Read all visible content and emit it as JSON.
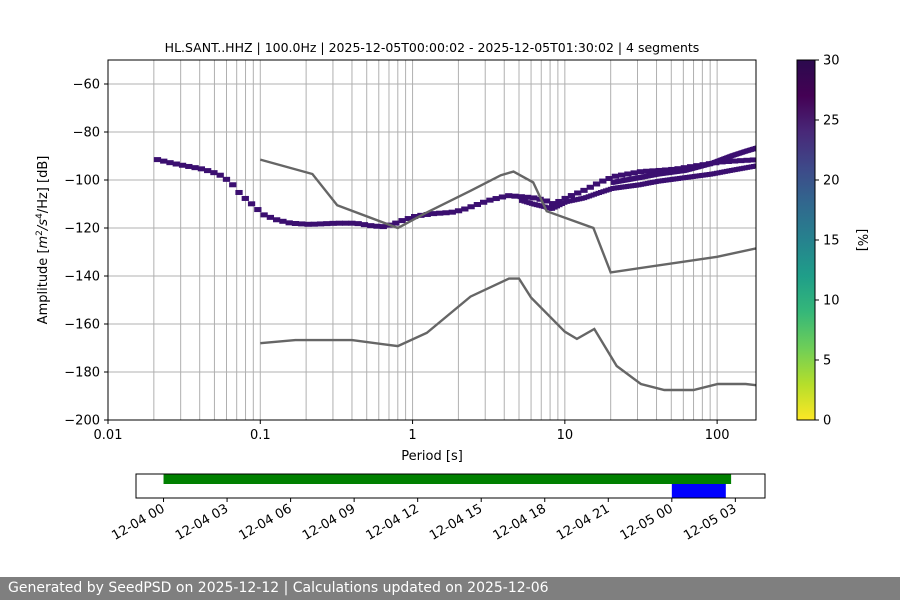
{
  "chart_data": [
    {
      "type": "heatmap",
      "title": "HL.SANT..HHZ | 100.0Hz | 2025-12-05T00:00:02 - 2025-12-05T01:30:02 | 4 segments",
      "xlabel": "Period [s]",
      "ylabel_prefix": "Amplitude [",
      "ylabel_m": "m",
      "ylabel_sup2": "2",
      "ylabel_slash_s": "/s",
      "ylabel_sup4": "4",
      "ylabel_suffix": "/Hz] [dB]",
      "xscale": "log",
      "xlim": [
        0.01,
        180
      ],
      "ylim": [
        -200,
        -50
      ],
      "xticks": [
        {
          "value": 0.01,
          "label": "0.01"
        },
        {
          "value": 0.1,
          "label": "0.1"
        },
        {
          "value": 1,
          "label": "1"
        },
        {
          "value": 10,
          "label": "10"
        },
        {
          "value": 100,
          "label": "100"
        }
      ],
      "yticks": [
        {
          "value": -60,
          "label": "−60"
        },
        {
          "value": -80,
          "label": "−80"
        },
        {
          "value": -100,
          "label": "−100"
        },
        {
          "value": -120,
          "label": "−120"
        },
        {
          "value": -140,
          "label": "−140"
        },
        {
          "value": -160,
          "label": "−160"
        },
        {
          "value": -180,
          "label": "−180"
        },
        {
          "value": -200,
          "label": "−200"
        }
      ],
      "grid": true,
      "vertical_grid_periods": [
        0.02,
        0.03,
        0.04,
        0.05,
        0.06,
        0.07,
        0.08,
        0.09,
        0.1,
        0.2,
        0.3,
        0.4,
        0.5,
        0.6,
        0.7,
        0.8,
        0.9,
        1,
        2,
        3,
        4,
        5,
        6,
        7,
        8,
        9,
        10,
        20,
        30,
        40,
        50,
        60,
        70,
        80,
        90,
        100
      ],
      "psd_color": "#3b0f70",
      "psd_trace": [
        [
          0.02,
          -91.5
        ],
        [
          0.025,
          -93
        ],
        [
          0.03,
          -94
        ],
        [
          0.04,
          -95.5
        ],
        [
          0.05,
          -97.5
        ],
        [
          0.055,
          -99
        ],
        [
          0.06,
          -101
        ],
        [
          0.065,
          -103
        ],
        [
          0.07,
          -106
        ],
        [
          0.08,
          -109
        ],
        [
          0.09,
          -112
        ],
        [
          0.1,
          -114.5
        ],
        [
          0.12,
          -116.5
        ],
        [
          0.15,
          -118
        ],
        [
          0.2,
          -118.5
        ],
        [
          0.3,
          -118
        ],
        [
          0.4,
          -118
        ],
        [
          0.5,
          -119
        ],
        [
          0.6,
          -119.5
        ],
        [
          0.7,
          -118.5
        ],
        [
          0.8,
          -117
        ],
        [
          1,
          -115
        ],
        [
          1.3,
          -114
        ],
        [
          1.7,
          -113.5
        ],
        [
          2,
          -112.5
        ],
        [
          3,
          -108.5
        ],
        [
          4,
          -106.5
        ],
        [
          5,
          -107
        ],
        [
          6,
          -107.5
        ],
        [
          7,
          -108.5
        ],
        [
          8,
          -110
        ],
        [
          10,
          -107
        ],
        [
          13,
          -104
        ],
        [
          16,
          -101
        ],
        [
          20,
          -98.5
        ],
        [
          30,
          -96.5
        ],
        [
          40,
          -96
        ],
        [
          50,
          -95.5
        ],
        [
          70,
          -94
        ],
        [
          100,
          -92.5
        ],
        [
          130,
          -92
        ],
        [
          180,
          -91.5
        ]
      ],
      "psd_trace_lower": [
        [
          5,
          -108.5
        ],
        [
          6,
          -110
        ],
        [
          7,
          -111
        ],
        [
          8,
          -112
        ],
        [
          10,
          -109
        ],
        [
          13,
          -107.5
        ],
        [
          16,
          -105.5
        ],
        [
          20,
          -103.5
        ],
        [
          30,
          -102
        ],
        [
          40,
          -100.5
        ],
        [
          60,
          -99
        ],
        [
          90,
          -97.5
        ],
        [
          120,
          -96
        ],
        [
          180,
          -94
        ]
      ],
      "psd_trace_upper": [
        [
          20,
          -101
        ],
        [
          30,
          -99
        ],
        [
          40,
          -97.5
        ],
        [
          60,
          -96
        ],
        [
          90,
          -93
        ],
        [
          120,
          -90
        ],
        [
          150,
          -88
        ],
        [
          180,
          -86.5
        ]
      ],
      "nhnm": {
        "color": "#666666",
        "points": [
          [
            0.1,
            -91.5
          ],
          [
            0.22,
            -97.5
          ],
          [
            0.32,
            -110.5
          ],
          [
            0.8,
            -120
          ],
          [
            1.2,
            -114
          ],
          [
            2.4,
            -104.5
          ],
          [
            3.8,
            -98
          ],
          [
            4.6,
            -96.5
          ],
          [
            6.2,
            -101
          ],
          [
            7.6,
            -113
          ],
          [
            15.4,
            -120
          ],
          [
            20,
            -138.5
          ],
          [
            100,
            -132
          ],
          [
            180,
            -128.5
          ]
        ]
      },
      "nlnm": {
        "color": "#666666",
        "points": [
          [
            0.1,
            -168
          ],
          [
            0.17,
            -166.7
          ],
          [
            0.4,
            -166.7
          ],
          [
            0.8,
            -169.2
          ],
          [
            1.24,
            -163.7
          ],
          [
            2.4,
            -148.6
          ],
          [
            4.3,
            -141.1
          ],
          [
            5,
            -141.1
          ],
          [
            6,
            -149
          ],
          [
            10,
            -163.2
          ],
          [
            12,
            -166.2
          ],
          [
            15.6,
            -162.1
          ],
          [
            21.9,
            -177.5
          ],
          [
            31.6,
            -185
          ],
          [
            45,
            -187.5
          ],
          [
            70,
            -187.5
          ],
          [
            101,
            -185
          ],
          [
            154,
            -185
          ],
          [
            180,
            -185.5
          ]
        ]
      }
    },
    {
      "type": "timeline",
      "tick_labels": [
        "12-04 00",
        "12-04 03",
        "12-04 06",
        "12-04 09",
        "12-04 12",
        "12-04 15",
        "12-04 18",
        "12-04 21",
        "12-05 00",
        "12-05 03"
      ],
      "x_range_hours": [
        -1.3,
        28.4
      ],
      "data_availability": {
        "start_hour": 0,
        "end_hour": 26.8,
        "color": "#008000"
      },
      "selected_window": {
        "start_hour": 24.0,
        "end_hour": 26.55,
        "color": "#0000ff"
      }
    },
    {
      "type": "colorbar",
      "label": "[%]",
      "range": [
        0,
        30
      ],
      "ticks": [
        {
          "value": 0,
          "label": "0"
        },
        {
          "value": 5,
          "label": "5"
        },
        {
          "value": 10,
          "label": "10"
        },
        {
          "value": 15,
          "label": "15"
        },
        {
          "value": 20,
          "label": "20"
        },
        {
          "value": 25,
          "label": "25"
        },
        {
          "value": 30,
          "label": "30"
        }
      ],
      "colormap": "viridis_r",
      "stops": [
        "#fde725",
        "#b5de2b",
        "#6ece58",
        "#35b779",
        "#1f9e89",
        "#26828e",
        "#31688e",
        "#3e4989",
        "#482878",
        "#440154",
        "#2b0a4e"
      ]
    }
  ],
  "footer": {
    "text": "Generated by SeedPSD on 2025-12-12 | Calculations updated on 2025-12-06"
  }
}
